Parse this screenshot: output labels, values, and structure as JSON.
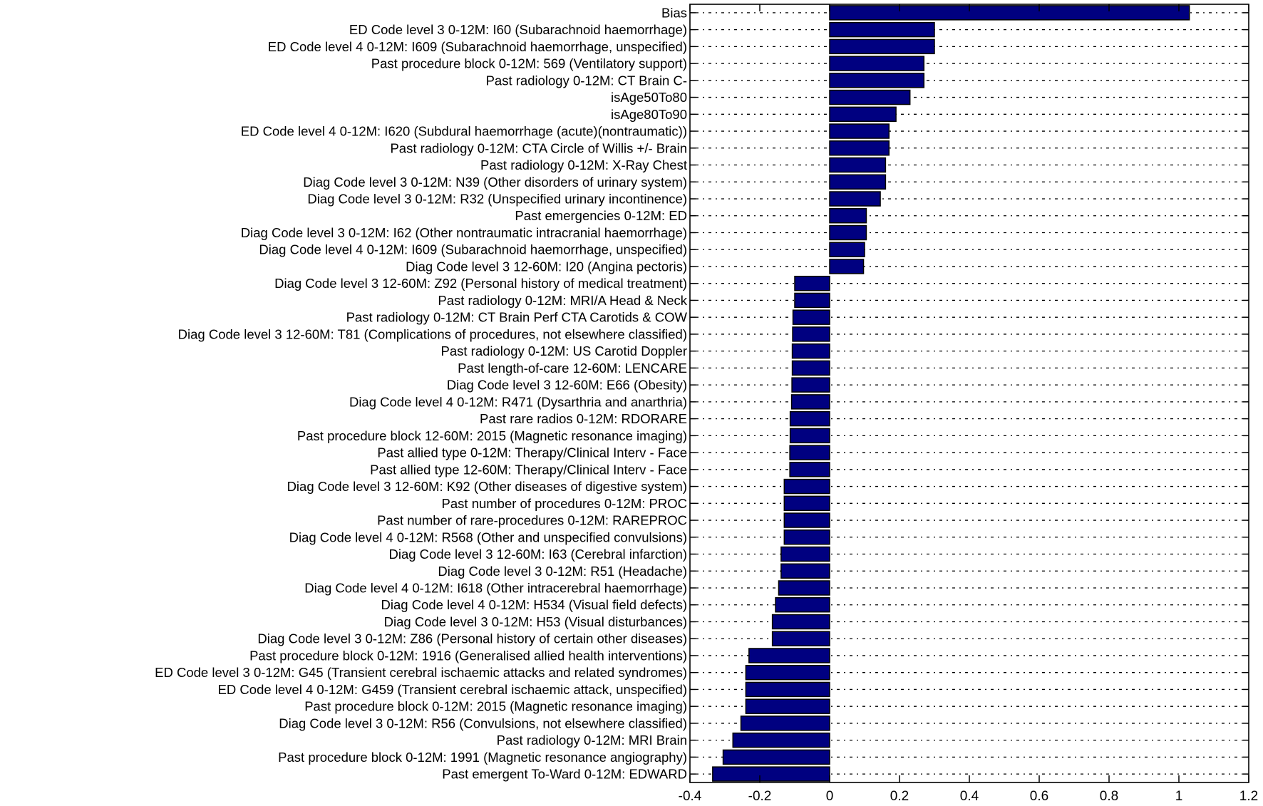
{
  "chart_data": {
    "type": "bar",
    "orientation": "horizontal",
    "title": "",
    "xlabel": "",
    "ylabel": "",
    "xlim": [
      -0.4,
      1.2
    ],
    "xticks": [
      "-0.4",
      "-0.2",
      "0",
      "0.2",
      "0.4",
      "0.6",
      "0.8",
      "1",
      "1.2"
    ],
    "xtick_values": [
      -0.4,
      -0.2,
      0,
      0.2,
      0.4,
      0.6,
      0.8,
      1,
      1.2
    ],
    "grid": "horizontal dotted",
    "bar_color": "#000080",
    "categories": [
      "Bias",
      "ED Code level 3 0-12M: I60 (Subarachnoid haemorrhage)",
      "ED Code level 4 0-12M: I609 (Subarachnoid haemorrhage, unspecified)",
      "Past procedure block 0-12M: 569 (Ventilatory support)",
      "Past radiology 0-12M: CT Brain C-",
      "isAge50To80",
      "isAge80To90",
      "ED Code level 4 0-12M: I620 (Subdural haemorrhage (acute)(nontraumatic))",
      "Past radiology 0-12M: CTA Circle of Willis +/- Brain",
      "Past radiology 0-12M: X-Ray Chest",
      "Diag Code level 3 0-12M: N39 (Other disorders of urinary system)",
      "Diag Code level 3 0-12M: R32 (Unspecified urinary incontinence)",
      "Past emergencies 0-12M: ED",
      "Diag Code level 3 0-12M: I62 (Other nontraumatic intracranial haemorrhage)",
      "Diag Code level 4 0-12M: I609 (Subarachnoid haemorrhage, unspecified)",
      "Diag Code level 3 12-60M: I20 (Angina pectoris)",
      "Diag Code level 3 12-60M: Z92 (Personal history of medical treatment)",
      "Past radiology 0-12M: MRI/A Head & Neck",
      "Past radiology 0-12M: CT Brain Perf CTA Carotids & COW",
      "Diag Code level 3 12-60M: T81 (Complications of procedures, not elsewhere classified)",
      "Past radiology 0-12M: US Carotid Doppler",
      "Past length-of-care 12-60M: LENCARE",
      "Diag Code level 3 12-60M: E66 (Obesity)",
      "Diag Code level 4 0-12M: R471 (Dysarthria and anarthria)",
      "Past rare radios 0-12M: RDORARE",
      "Past procedure block 12-60M: 2015 (Magnetic resonance imaging)",
      "Past allied type 0-12M: Therapy/Clinical Interv - Face",
      "Past allied type 12-60M: Therapy/Clinical Interv - Face",
      "Diag Code level 3 12-60M: K92 (Other diseases of digestive system)",
      "Past number of procedures 0-12M: PROC",
      "Past number of rare-procedures 0-12M: RAREPROC",
      "Diag Code level 4 0-12M: R568 (Other and unspecified convulsions)",
      "Diag Code level 3 12-60M: I63 (Cerebral infarction)",
      "Diag Code level 3 0-12M: R51 (Headache)",
      "Diag Code level 4 0-12M: I618 (Other intracerebral haemorrhage)",
      "Diag Code level 4 0-12M: H534 (Visual field defects)",
      "Diag Code level 3 0-12M: H53 (Visual disturbances)",
      "Diag Code level 3 0-12M: Z86 (Personal history of certain other diseases)",
      "Past procedure block 0-12M: 1916 (Generalised allied health interventions)",
      "ED Code level 3 0-12M: G45 (Transient cerebral ischaemic attacks and related syndromes)",
      "ED Code level 4 0-12M: G459 (Transient cerebral ischaemic attack, unspecified)",
      "Past procedure block 0-12M: 2015 (Magnetic resonance imaging)",
      "Diag Code level 3 0-12M: R56 (Convulsions, not elsewhere classified)",
      "Past radiology 0-12M: MRI Brain",
      "Past procedure block 0-12M: 1991 (Magnetic resonance angiography)",
      "Past emergent To-Ward  0-12M: EDWARD"
    ],
    "values": [
      1.03,
      0.3,
      0.3,
      0.27,
      0.27,
      0.23,
      0.19,
      0.17,
      0.17,
      0.16,
      0.16,
      0.145,
      0.105,
      0.105,
      0.1,
      0.097,
      -0.1,
      -0.1,
      -0.105,
      -0.106,
      -0.107,
      -0.107,
      -0.108,
      -0.109,
      -0.113,
      -0.113,
      -0.114,
      -0.114,
      -0.13,
      -0.13,
      -0.13,
      -0.13,
      -0.139,
      -0.139,
      -0.146,
      -0.155,
      -0.164,
      -0.164,
      -0.231,
      -0.24,
      -0.24,
      -0.24,
      -0.254,
      -0.277,
      -0.305,
      -0.335
    ]
  }
}
